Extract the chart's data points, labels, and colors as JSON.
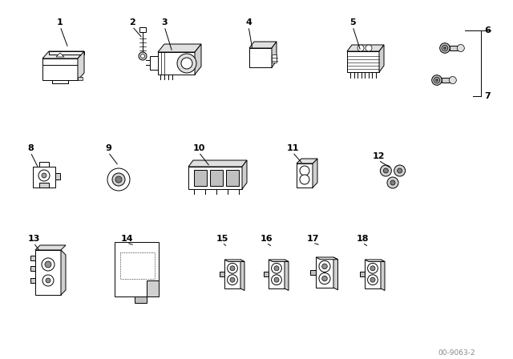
{
  "background_color": "#ffffff",
  "watermark": "00-9063-2",
  "line_color": "#000000",
  "line_width": 0.7,
  "fig_w": 6.4,
  "fig_h": 4.48,
  "dpi": 100
}
